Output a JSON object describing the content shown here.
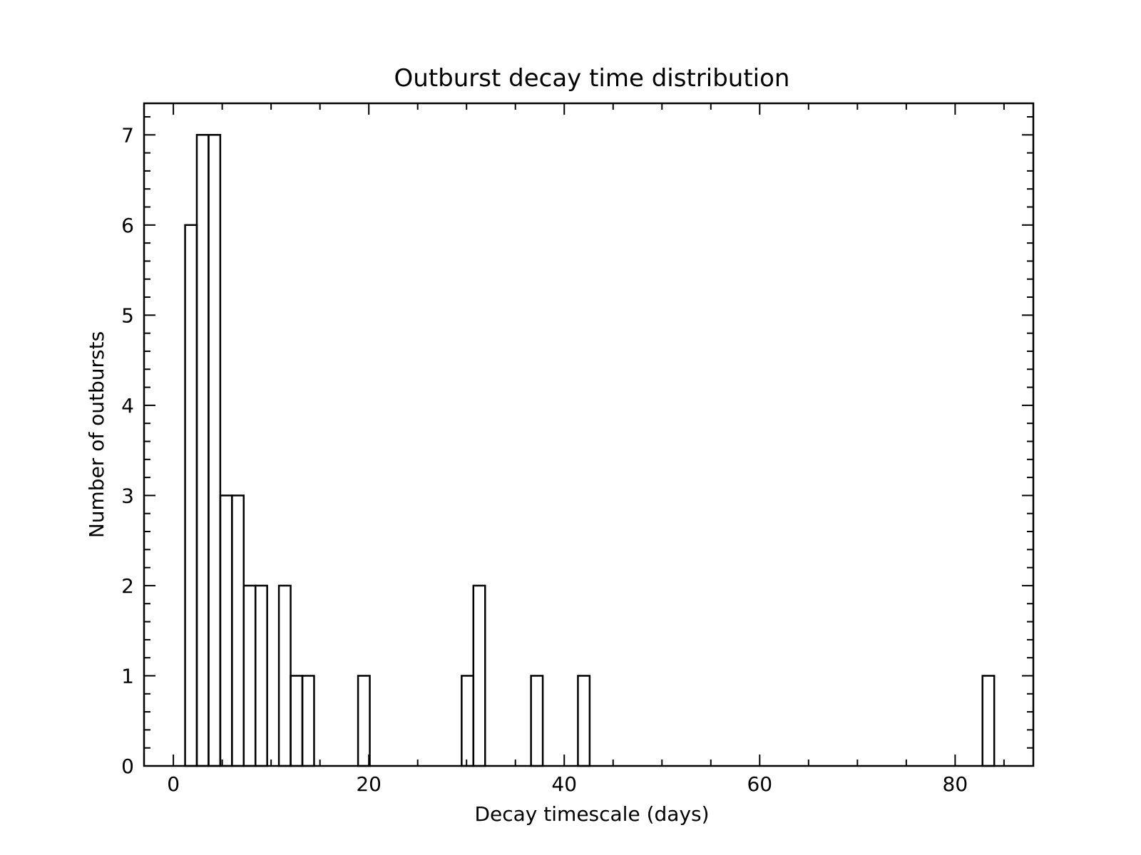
{
  "chart_data": {
    "type": "bar",
    "title": "Outburst decay time distribution",
    "xlabel": "Decay timescale (days)",
    "ylabel": "Number of outbursts",
    "xlim": [
      -3,
      88
    ],
    "ylim": [
      0,
      7.35
    ],
    "x_major_ticks": [
      0,
      20,
      40,
      60,
      80
    ],
    "x_minor_ticks": [
      5,
      10,
      15,
      25,
      30,
      35,
      45,
      50,
      55,
      65,
      70,
      75,
      85
    ],
    "y_major_ticks": [
      0,
      1,
      2,
      3,
      4,
      5,
      6,
      7
    ],
    "y_minor_step": 0.2,
    "bin_width": 1.2,
    "grid": false,
    "series": [
      {
        "bins": [
          {
            "x0": 1.2,
            "x1": 2.4,
            "count": 6
          },
          {
            "x0": 2.4,
            "x1": 3.6,
            "count": 7
          },
          {
            "x0": 3.6,
            "x1": 4.8,
            "count": 7
          },
          {
            "x0": 4.8,
            "x1": 6.0,
            "count": 3
          },
          {
            "x0": 6.0,
            "x1": 7.2,
            "count": 3
          },
          {
            "x0": 7.2,
            "x1": 8.4,
            "count": 2
          },
          {
            "x0": 8.4,
            "x1": 9.6,
            "count": 2
          },
          {
            "x0": 10.8,
            "x1": 12.0,
            "count": 2
          },
          {
            "x0": 12.0,
            "x1": 13.2,
            "count": 1
          },
          {
            "x0": 13.2,
            "x1": 14.4,
            "count": 1
          },
          {
            "x0": 18.9,
            "x1": 20.1,
            "count": 1
          },
          {
            "x0": 29.5,
            "x1": 30.7,
            "count": 1
          },
          {
            "x0": 30.7,
            "x1": 31.9,
            "count": 2
          },
          {
            "x0": 36.6,
            "x1": 37.8,
            "count": 1
          },
          {
            "x0": 41.4,
            "x1": 42.6,
            "count": 1
          },
          {
            "x0": 82.8,
            "x1": 84.0,
            "count": 1
          }
        ]
      }
    ]
  }
}
